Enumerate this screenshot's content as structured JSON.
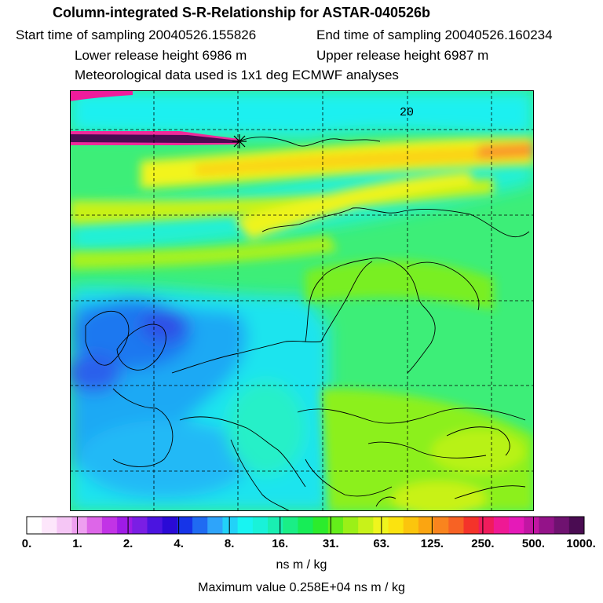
{
  "header": {
    "title": "Column-integrated S-R-Relationship for ASTAR-040526b",
    "start_time": "Start time of sampling 20040526.155826",
    "end_time": "End time of sampling 20040526.160234",
    "lower_height": "Lower release height 6986 m",
    "upper_height": "Upper release height 6987 m",
    "met_data": "Meteorological data used is 1x1 deg ECMWF analyses"
  },
  "map": {
    "grid_label": "20",
    "source_marker": "star"
  },
  "colorbar": {
    "labels": [
      "0.",
      "1.",
      "2.",
      "4.",
      "8.",
      "16.",
      "31.",
      "63.",
      "125.",
      "250.",
      "500.",
      "1000."
    ],
    "colors": [
      "#ffffff",
      "#fde6fb",
      "#f5c6f5",
      "#ee9ff0",
      "#dd66e8",
      "#c233e6",
      "#9f1be6",
      "#7a1ee4",
      "#4b14e0",
      "#2a0ad6",
      "#1634e8",
      "#1f6bf2",
      "#2ea4fa",
      "#22d2f8",
      "#18f4f2",
      "#19f2d9",
      "#19efb2",
      "#1aee86",
      "#17ed57",
      "#2cec2c",
      "#64ee1a",
      "#9bf017",
      "#c8f219",
      "#eff51d",
      "#fbe30f",
      "#fbc50d",
      "#fba511",
      "#f9841e",
      "#f76224",
      "#f4332a",
      "#f01c5c",
      "#ef1994",
      "#e51ab8",
      "#c116a3",
      "#941389",
      "#6f1270",
      "#4a0c52"
    ],
    "units": "ns m / kg",
    "max_value": "Maximum value  0.258E+04 ns m / kg"
  }
}
